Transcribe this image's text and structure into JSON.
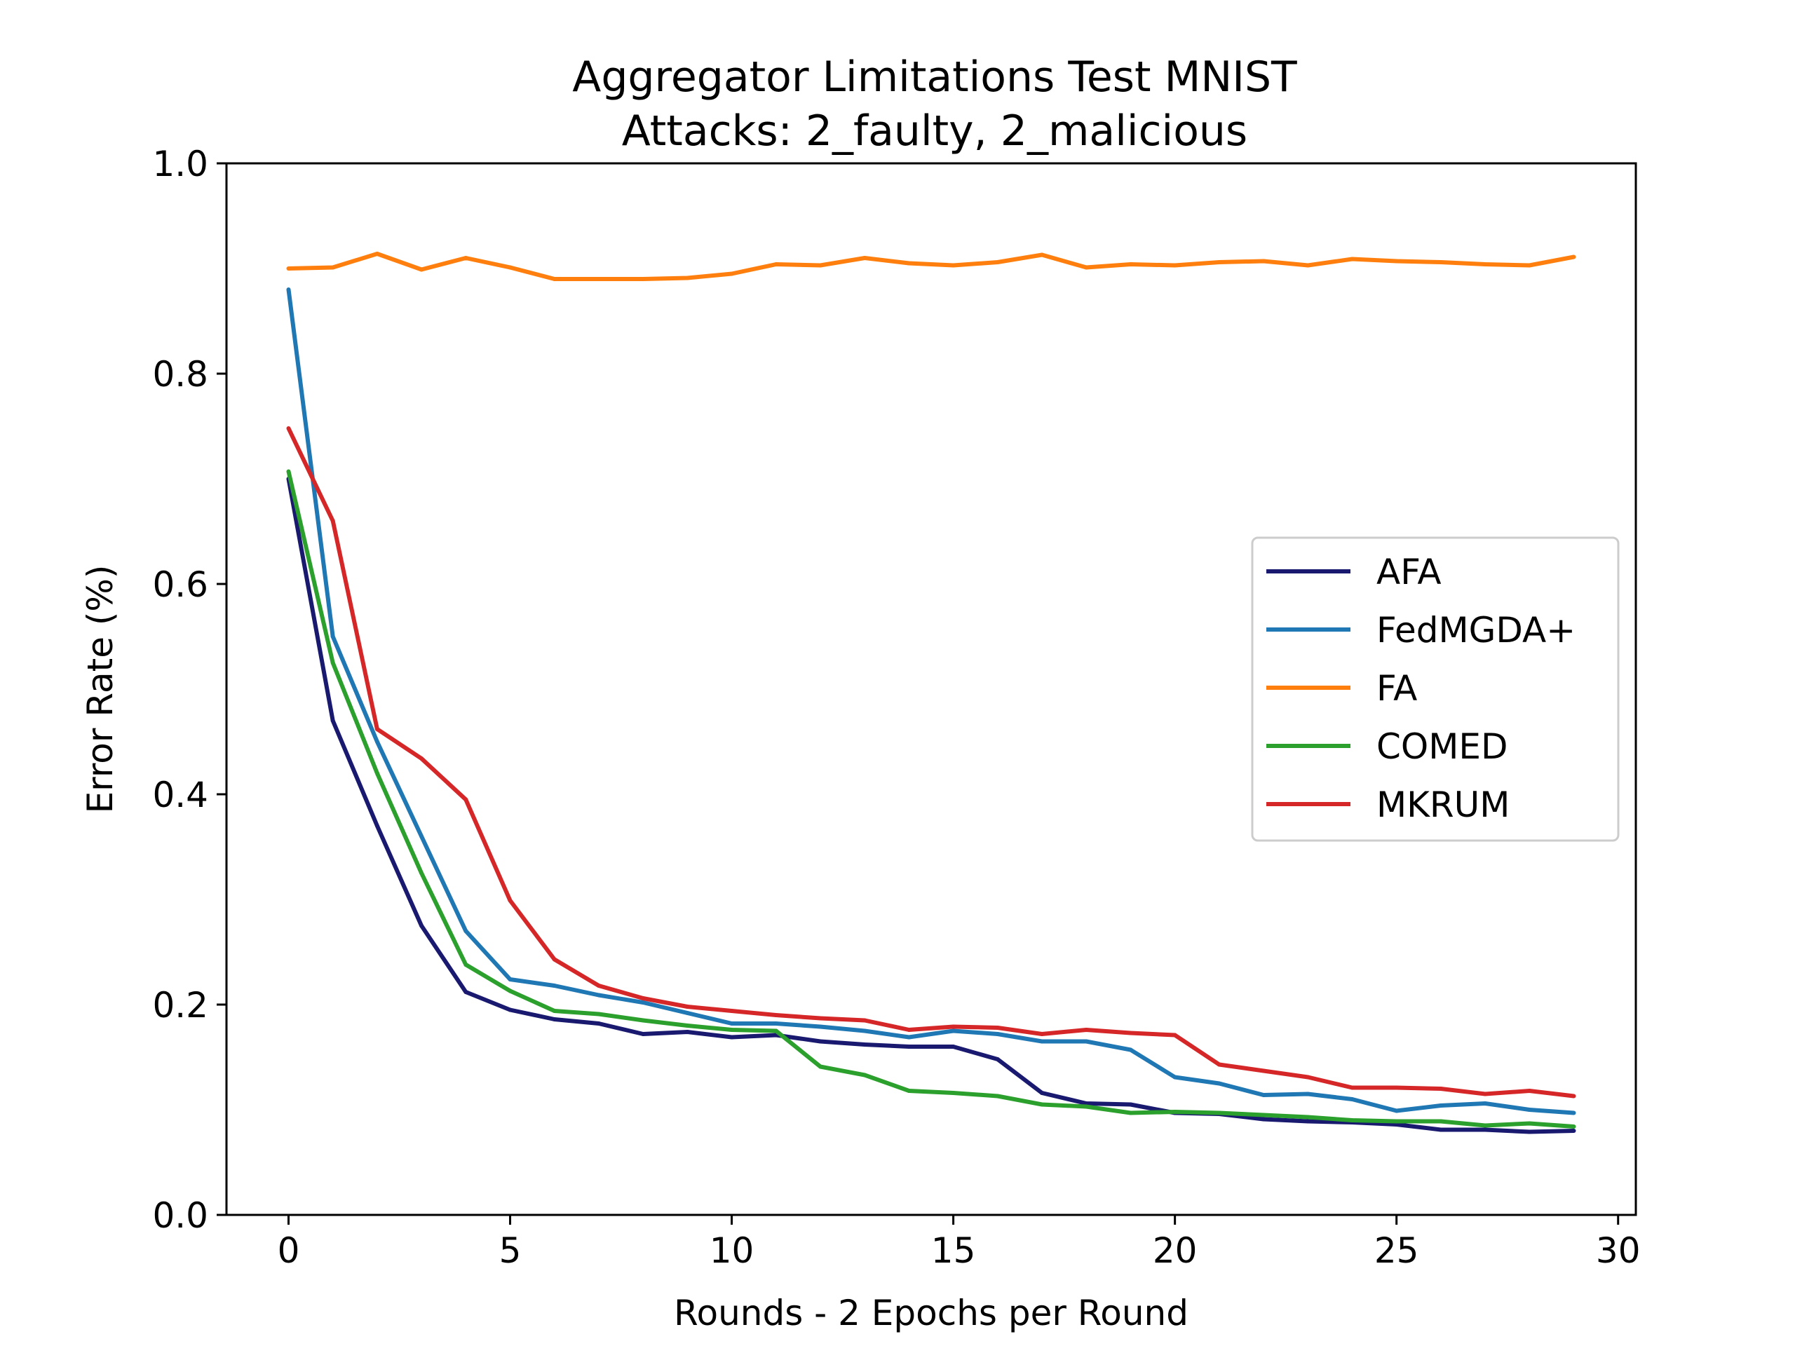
{
  "chart_data": {
    "type": "line",
    "title": "Aggregator Limitations Test MNIST",
    "subtitle": "Attacks: 2_faulty, 2_malicious",
    "xlabel": "Rounds - 2 Epochs per Round",
    "ylabel": "Error Rate (%)",
    "xlim": [
      -1.4,
      30.4
    ],
    "ylim": [
      0,
      1
    ],
    "xticks": [
      0,
      5,
      10,
      15,
      20,
      25,
      30
    ],
    "xtick_labels": [
      "0",
      "5",
      "10",
      "15",
      "20",
      "25",
      "30"
    ],
    "yticks": [
      0,
      0.2,
      0.4,
      0.6,
      0.8,
      1.0
    ],
    "ytick_labels": [
      "0.0",
      "0.2",
      "0.4",
      "0.6",
      "0.8",
      "1.0"
    ],
    "grid": false,
    "legend_position": "center-right",
    "x": [
      0,
      1,
      2,
      3,
      4,
      5,
      6,
      7,
      8,
      9,
      10,
      11,
      12,
      13,
      14,
      15,
      16,
      17,
      18,
      19,
      20,
      21,
      22,
      23,
      24,
      25,
      26,
      27,
      28,
      29
    ],
    "series": [
      {
        "name": "AFA",
        "color": "#191970",
        "values": [
          0.7,
          0.47,
          0.37,
          0.275,
          0.212,
          0.195,
          0.186,
          0.182,
          0.172,
          0.174,
          0.169,
          0.171,
          0.165,
          0.162,
          0.16,
          0.16,
          0.148,
          0.116,
          0.106,
          0.105,
          0.097,
          0.096,
          0.091,
          0.089,
          0.088,
          0.086,
          0.081,
          0.081,
          0.079,
          0.08
        ]
      },
      {
        "name": "FedMGDA+",
        "color": "#1f77b4",
        "values": [
          0.88,
          0.55,
          0.45,
          0.36,
          0.27,
          0.224,
          0.218,
          0.209,
          0.202,
          0.192,
          0.182,
          0.182,
          0.179,
          0.175,
          0.169,
          0.175,
          0.172,
          0.165,
          0.165,
          0.157,
          0.131,
          0.125,
          0.114,
          0.115,
          0.11,
          0.099,
          0.104,
          0.106,
          0.1,
          0.097
        ]
      },
      {
        "name": "FA",
        "color": "#ff7f0e",
        "values": [
          0.9,
          0.901,
          0.914,
          0.899,
          0.91,
          0.901,
          0.89,
          0.89,
          0.89,
          0.891,
          0.895,
          0.904,
          0.903,
          0.91,
          0.905,
          0.903,
          0.906,
          0.913,
          0.901,
          0.904,
          0.903,
          0.906,
          0.907,
          0.903,
          0.909,
          0.907,
          0.906,
          0.904,
          0.903,
          0.911
        ]
      },
      {
        "name": "COMED",
        "color": "#2ca02c",
        "values": [
          0.707,
          0.525,
          0.42,
          0.325,
          0.238,
          0.213,
          0.194,
          0.191,
          0.185,
          0.18,
          0.176,
          0.175,
          0.141,
          0.133,
          0.118,
          0.116,
          0.113,
          0.105,
          0.103,
          0.097,
          0.098,
          0.097,
          0.095,
          0.093,
          0.09,
          0.089,
          0.089,
          0.085,
          0.087,
          0.084
        ]
      },
      {
        "name": "MKRUM",
        "color": "#d62728",
        "values": [
          0.748,
          0.66,
          0.462,
          0.434,
          0.395,
          0.299,
          0.243,
          0.218,
          0.206,
          0.198,
          0.194,
          0.19,
          0.187,
          0.185,
          0.176,
          0.179,
          0.178,
          0.172,
          0.176,
          0.173,
          0.171,
          0.143,
          0.137,
          0.131,
          0.121,
          0.121,
          0.12,
          0.115,
          0.118,
          0.113
        ]
      }
    ]
  }
}
